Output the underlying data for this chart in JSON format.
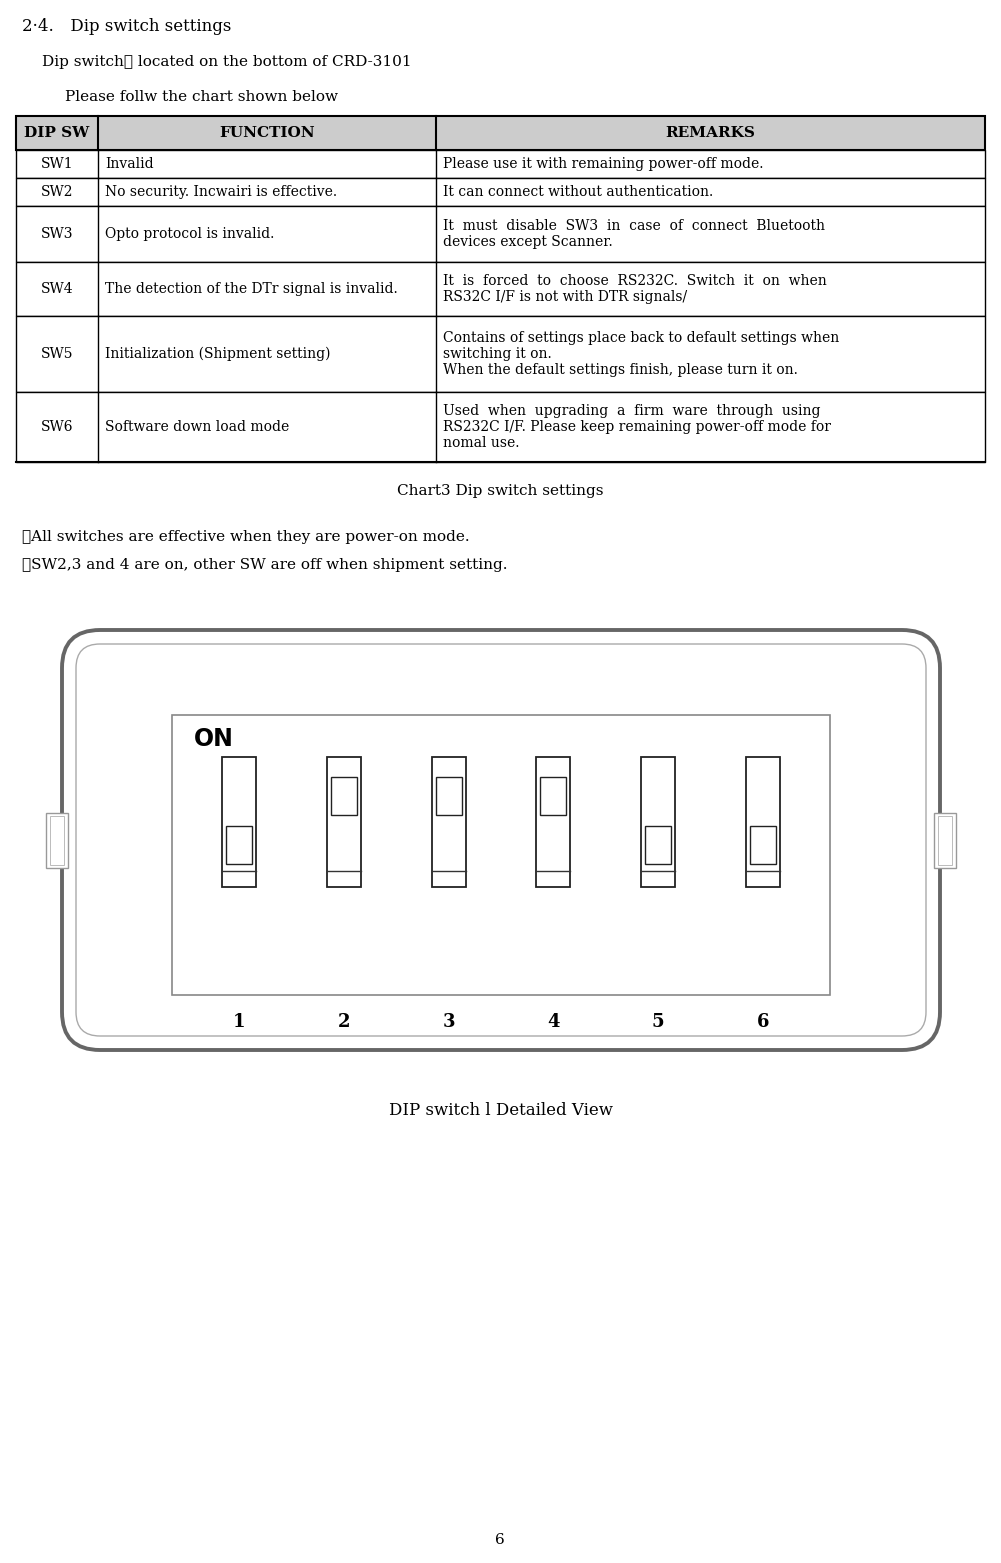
{
  "title": "2·4. Dip switch settings",
  "subtitle1": "Dip switch　 located on the bottom of CRD-3101",
  "subtitle2": "Please follw the chart shown below",
  "table_headers": [
    "DIP SW",
    "FUNCTION",
    "REMARKS"
  ],
  "table_rows": [
    [
      "SW1",
      "Invalid",
      "Please use it with remaining power-off mode."
    ],
    [
      "SW2",
      "No security. Incwairi is effective.",
      "It can connect without authentication."
    ],
    [
      "SW3",
      "Opto protocol is invalid.",
      "It  must  disable  SW3  in  case  of  connect  Bluetooth\ndevices except Scanner."
    ],
    [
      "SW4",
      "The detection of the DTr signal is invalid.",
      "It  is  forced  to  choose  RS232C.  Switch  it  on  when\nRS32C I/F is not with DTR signals/"
    ],
    [
      "SW5",
      "Initialization (Shipment setting)",
      "Contains of settings place back to default settings when\nswitching it on.\nWhen the default settings finish, please turn it on."
    ],
    [
      "SW6",
      "Software down load mode",
      "Used  when  upgrading  a  firm  ware  through  using\nRS232C I/F. Please keep remaining power-off mode for\nnomal use."
    ]
  ],
  "caption": "Chart3 Dip switch settings",
  "note1": "※All switches are effective when they are power-on mode.",
  "note2": "※SW2,3 and 4 are on, other SW are off when shipment setting.",
  "diagram_caption": "DIP switch l Detailed View",
  "page_number": "6",
  "switch_states": [
    false,
    true,
    true,
    true,
    false,
    false
  ],
  "switch_labels": [
    "1",
    "2",
    "3",
    "4",
    "5",
    "6"
  ],
  "bg_color": "#ffffff",
  "header_bg": "#cccccc",
  "table_border": "#000000",
  "text_color": "#000000"
}
